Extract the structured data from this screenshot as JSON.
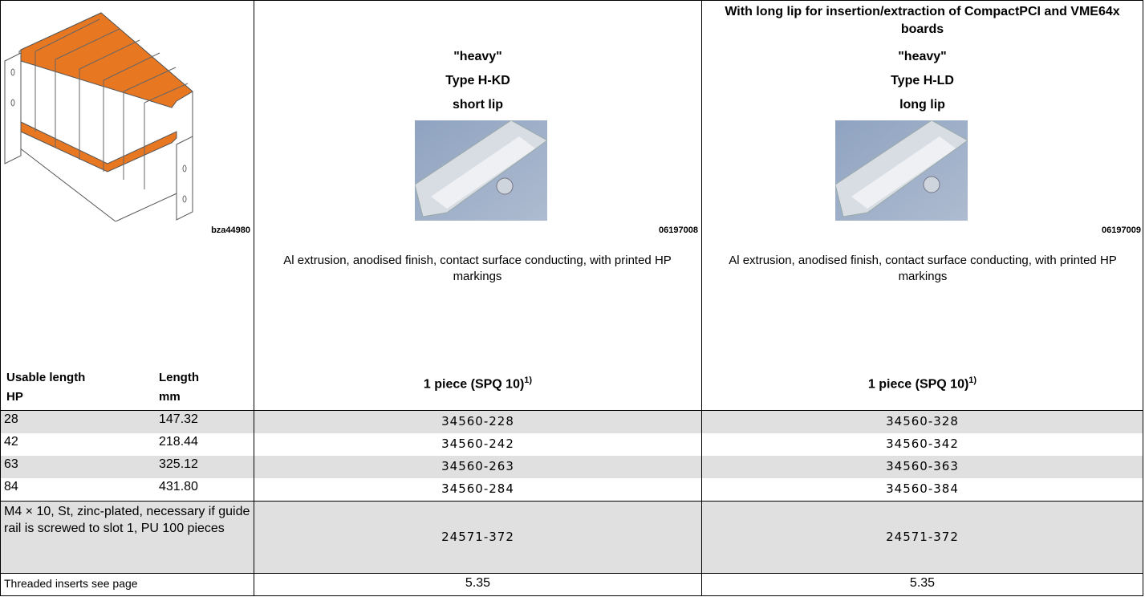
{
  "header": {
    "image_code": "bza44980",
    "columns": [
      {
        "lines": [
          "\"heavy\"",
          "Type H-KD",
          "short lip"
        ],
        "image_code": "06197008",
        "description": "Al extrusion, anodised finish, contact surface conducting, with printed HP markings",
        "packaging": "1 piece (SPQ 10)",
        "footnote": "1)"
      },
      {
        "subtitle": "With long lip for insertion/extraction of CompactPCI and VME64x boards",
        "lines": [
          "\"heavy\"",
          "Type H-LD",
          "long lip"
        ],
        "image_code": "06197009",
        "description": "Al extrusion, anodised finish, contact surface conducting, with printed HP markings",
        "packaging": "1 piece (SPQ 10)",
        "footnote": "1)"
      }
    ]
  },
  "table": {
    "columns": [
      [
        "Usable length",
        "HP"
      ],
      [
        "Length",
        "mm"
      ]
    ],
    "rows": [
      [
        "28",
        "147.32",
        "34560-228",
        "34560-328"
      ],
      [
        "42",
        "218.44",
        "34560-242",
        "34560-342"
      ],
      [
        "63",
        "325.12",
        "34560-263",
        "34560-363"
      ],
      [
        "84",
        "431.80",
        "34560-284",
        "34560-384"
      ]
    ],
    "screw_row": [
      "M4 × 10, St, zinc-plated, necessary if guide rail is screwed to slot 1, PU 100 pieces",
      "24571-372",
      "24571-372"
    ],
    "insert_row": [
      "Threaded inserts see page",
      "5.35",
      "5.35"
    ]
  }
}
